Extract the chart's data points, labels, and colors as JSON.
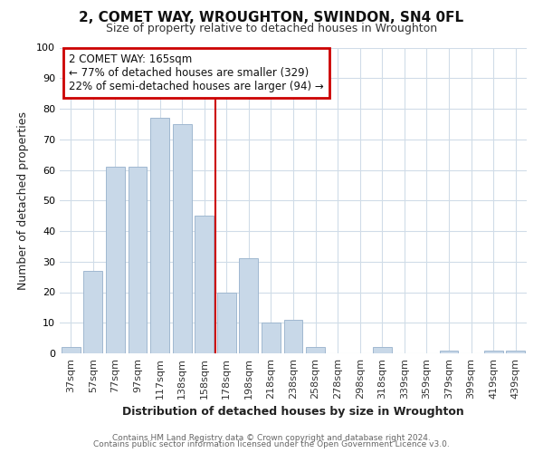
{
  "title": "2, COMET WAY, WROUGHTON, SWINDON, SN4 0FL",
  "subtitle": "Size of property relative to detached houses in Wroughton",
  "xlabel": "Distribution of detached houses by size in Wroughton",
  "ylabel": "Number of detached properties",
  "bar_labels": [
    "37sqm",
    "57sqm",
    "77sqm",
    "97sqm",
    "117sqm",
    "138sqm",
    "158sqm",
    "178sqm",
    "198sqm",
    "218sqm",
    "238sqm",
    "258sqm",
    "278sqm",
    "298sqm",
    "318sqm",
    "339sqm",
    "359sqm",
    "379sqm",
    "399sqm",
    "419sqm",
    "439sqm"
  ],
  "bar_values": [
    2,
    27,
    61,
    61,
    77,
    75,
    45,
    20,
    31,
    10,
    11,
    2,
    0,
    0,
    2,
    0,
    0,
    1,
    0,
    1,
    1
  ],
  "bar_color": "#c8d8e8",
  "bar_edge_color": "#a0b8d0",
  "annotation_title": "2 COMET WAY: 165sqm",
  "annotation_line1": "← 77% of detached houses are smaller (329)",
  "annotation_line2": "22% of semi-detached houses are larger (94) →",
  "ylim": [
    0,
    100
  ],
  "vline_color": "#cc0000",
  "footer1": "Contains HM Land Registry data © Crown copyright and database right 2024.",
  "footer2": "Contains public sector information licensed under the Open Government Licence v3.0.",
  "bg_color": "#ffffff",
  "grid_color": "#d0dce8"
}
